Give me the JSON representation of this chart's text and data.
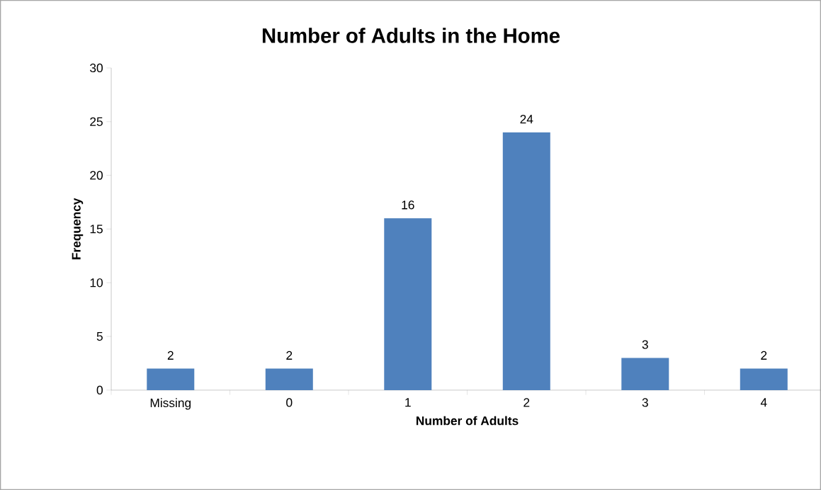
{
  "chart_data": {
    "type": "bar",
    "title": "Number of Adults in the Home",
    "xlabel": "Number of Adults",
    "ylabel": "Frequency",
    "categories": [
      "Missing",
      "0",
      "1",
      "2",
      "3",
      "4"
    ],
    "values": [
      2,
      2,
      16,
      24,
      3,
      2
    ],
    "color": "#4f81bd",
    "ylim": [
      0,
      30
    ],
    "yticks": [
      0,
      5,
      10,
      15,
      20,
      25,
      30
    ],
    "data_labels": true
  }
}
